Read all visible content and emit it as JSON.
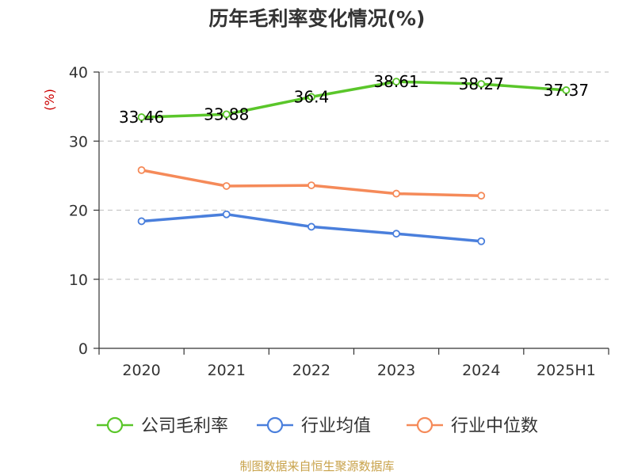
{
  "chart_data": {
    "type": "line",
    "title": "历年毛利率变化情况(%)",
    "ylabel": "(%)",
    "xlabel": "",
    "categories": [
      "2020",
      "2021",
      "2022",
      "2023",
      "2024",
      "2025H1"
    ],
    "ylim": [
      0,
      40
    ],
    "yticks": [
      0,
      10,
      20,
      30,
      40
    ],
    "grid": true,
    "legend_position": "bottom",
    "series": [
      {
        "name": "公司毛利率",
        "color": "#5ac62a",
        "values": [
          33.46,
          33.88,
          36.4,
          38.61,
          38.27,
          37.37
        ],
        "labels": [
          "33.46",
          "33.88",
          "36.4",
          "38.61",
          "38.27",
          "37.37"
        ]
      },
      {
        "name": "行业均值",
        "color": "#4a7fdc",
        "values": [
          18.4,
          19.4,
          17.6,
          16.6,
          15.5,
          null
        ]
      },
      {
        "name": "行业中位数",
        "color": "#f58a59",
        "values": [
          25.8,
          23.5,
          23.6,
          22.4,
          22.1,
          null
        ]
      }
    ]
  },
  "source_note": "制图数据来自恒生聚源数据库"
}
